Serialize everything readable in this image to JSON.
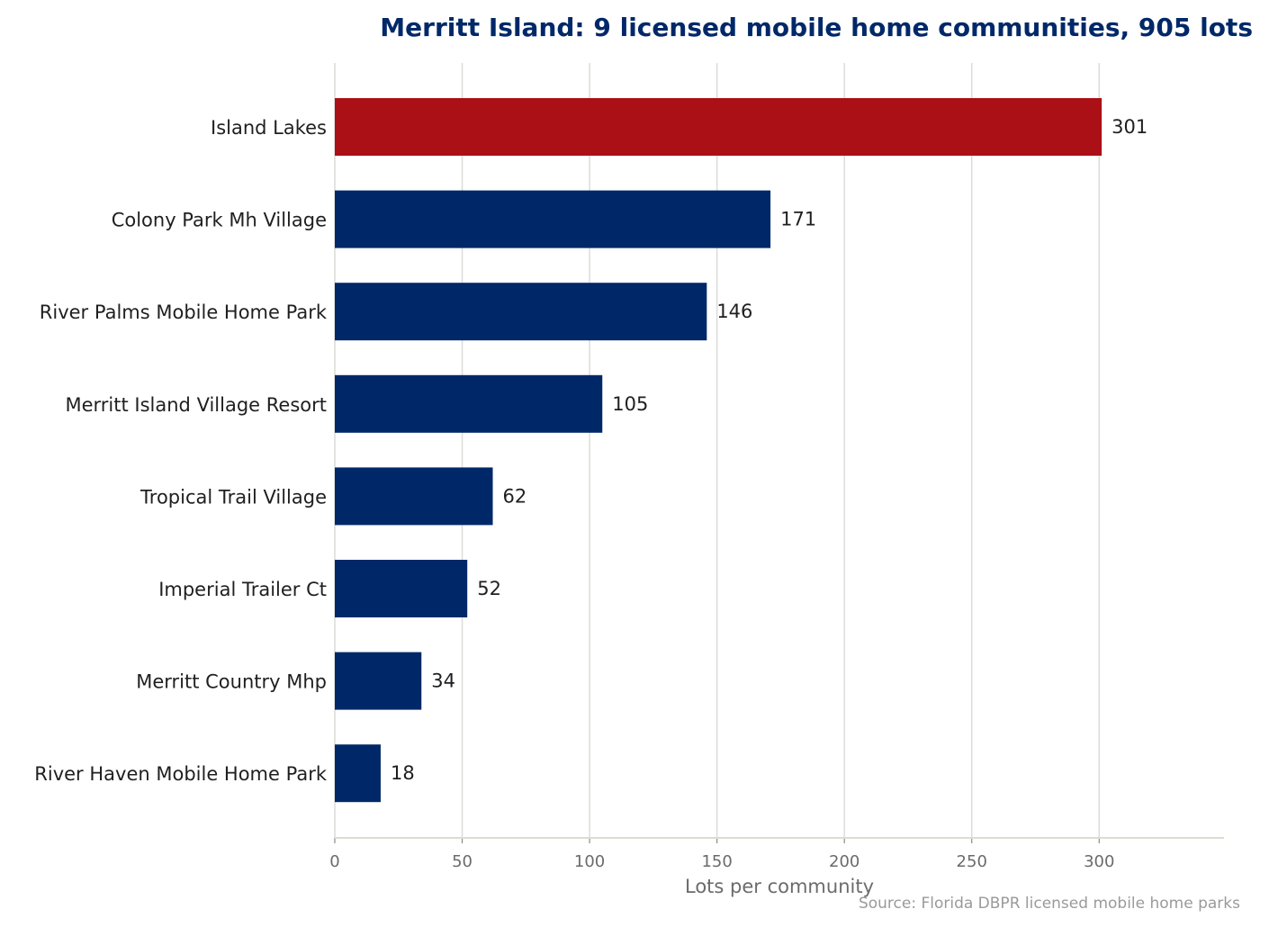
{
  "chart_data": {
    "type": "bar",
    "orientation": "horizontal",
    "title": "Merritt Island: 9 licensed mobile home communities, 905 lots",
    "xlabel": "Lots per community",
    "ylabel": "",
    "source": "Source: Florida DBPR licensed mobile home parks",
    "categories": [
      "Island Lakes",
      "Colony Park Mh Village",
      "River Palms Mobile Home Park",
      "Merritt Island Village Resort",
      "Tropical Trail Village",
      "Imperial Trailer Ct",
      "Merritt Country Mhp",
      "River Haven Mobile Home Park"
    ],
    "values": [
      301,
      171,
      146,
      105,
      62,
      52,
      34,
      18
    ],
    "value_labels": [
      "301",
      "171",
      "146",
      "105",
      "62",
      "52",
      "34",
      "18"
    ],
    "highlight_index": 0,
    "xlim": [
      0,
      349
    ],
    "xticks": [
      0,
      50,
      100,
      150,
      200,
      250,
      300
    ],
    "xtick_labels": [
      "0",
      "50",
      "100",
      "150",
      "200",
      "250",
      "300"
    ],
    "grid": "vertical",
    "legend": "none",
    "colors": {
      "bar": "#002868",
      "highlight": "#aa1016",
      "title": "#002868",
      "grid": "#dcdcd7",
      "axis": "#dcdcd0"
    }
  }
}
